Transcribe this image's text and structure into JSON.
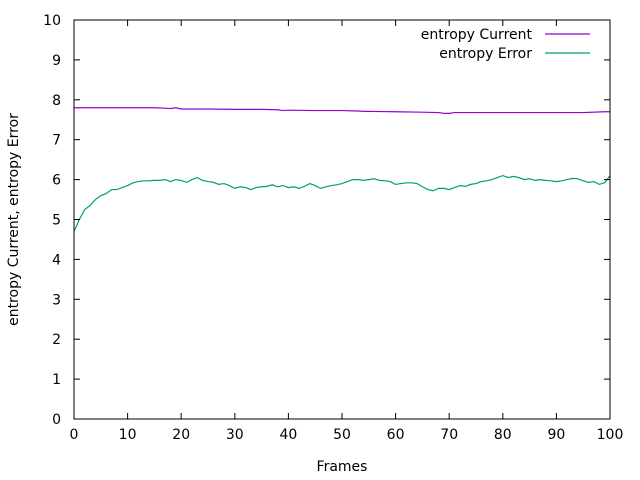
{
  "chart_data": {
    "type": "line",
    "xlabel": "Frames",
    "ylabel": "entropy Current, entropy Error",
    "xlim": [
      0,
      100
    ],
    "ylim": [
      0,
      10
    ],
    "x_ticks": [
      "0",
      "10",
      "20",
      "30",
      "40",
      "50",
      "60",
      "70",
      "80",
      "90",
      "100"
    ],
    "y_ticks": [
      "0",
      "1",
      "2",
      "3",
      "4",
      "5",
      "6",
      "7",
      "8",
      "9",
      "10"
    ],
    "grid": false,
    "legend_position": "top-right",
    "series": [
      {
        "name": "entropy Current",
        "color": "#9400d3",
        "x": [
          0,
          5,
          10,
          15,
          17,
          18,
          19,
          20,
          25,
          30,
          35,
          38,
          39,
          40,
          45,
          50,
          53,
          54,
          55,
          60,
          65,
          68,
          69,
          70,
          71,
          75,
          80,
          85,
          90,
          95,
          99,
          100
        ],
        "values": [
          7.8,
          7.8,
          7.8,
          7.8,
          7.79,
          7.78,
          7.8,
          7.77,
          7.77,
          7.76,
          7.76,
          7.75,
          7.73,
          7.74,
          7.73,
          7.73,
          7.72,
          7.71,
          7.71,
          7.7,
          7.69,
          7.68,
          7.66,
          7.66,
          7.68,
          7.68,
          7.68,
          7.68,
          7.68,
          7.68,
          7.7,
          7.7
        ]
      },
      {
        "name": "entropy Error",
        "color": "#009e73",
        "x": [
          0,
          1,
          2,
          3,
          4,
          5,
          6,
          7,
          8,
          9,
          10,
          11,
          12,
          13,
          14,
          15,
          16,
          17,
          18,
          19,
          20,
          21,
          22,
          23,
          24,
          25,
          26,
          27,
          28,
          29,
          30,
          31,
          32,
          33,
          34,
          35,
          36,
          37,
          38,
          39,
          40,
          41,
          42,
          43,
          44,
          45,
          46,
          47,
          48,
          49,
          50,
          51,
          52,
          53,
          54,
          55,
          56,
          57,
          58,
          59,
          60,
          61,
          62,
          63,
          64,
          65,
          66,
          67,
          68,
          69,
          70,
          71,
          72,
          73,
          74,
          75,
          76,
          77,
          78,
          79,
          80,
          81,
          82,
          83,
          84,
          85,
          86,
          87,
          88,
          89,
          90,
          91,
          92,
          93,
          94,
          95,
          96,
          97,
          98,
          99,
          100
        ],
        "values": [
          4.7,
          5.0,
          5.25,
          5.35,
          5.5,
          5.6,
          5.65,
          5.75,
          5.75,
          5.8,
          5.85,
          5.92,
          5.95,
          5.97,
          5.97,
          5.98,
          5.98,
          6.0,
          5.95,
          6.0,
          5.98,
          5.93,
          6.0,
          6.05,
          5.98,
          5.95,
          5.93,
          5.88,
          5.9,
          5.85,
          5.78,
          5.82,
          5.8,
          5.75,
          5.8,
          5.82,
          5.83,
          5.87,
          5.82,
          5.85,
          5.8,
          5.82,
          5.78,
          5.83,
          5.9,
          5.85,
          5.78,
          5.82,
          5.85,
          5.87,
          5.9,
          5.95,
          6.0,
          6.0,
          5.98,
          6.0,
          6.02,
          5.98,
          5.97,
          5.95,
          5.88,
          5.9,
          5.92,
          5.92,
          5.9,
          5.82,
          5.75,
          5.72,
          5.78,
          5.78,
          5.75,
          5.8,
          5.85,
          5.83,
          5.88,
          5.9,
          5.95,
          5.97,
          6.0,
          6.05,
          6.1,
          6.05,
          6.08,
          6.05,
          6.0,
          6.02,
          5.98,
          6.0,
          5.98,
          5.97,
          5.95,
          5.97,
          6.0,
          6.03,
          6.02,
          5.97,
          5.93,
          5.95,
          5.88,
          5.92,
          6.1
        ]
      }
    ]
  }
}
